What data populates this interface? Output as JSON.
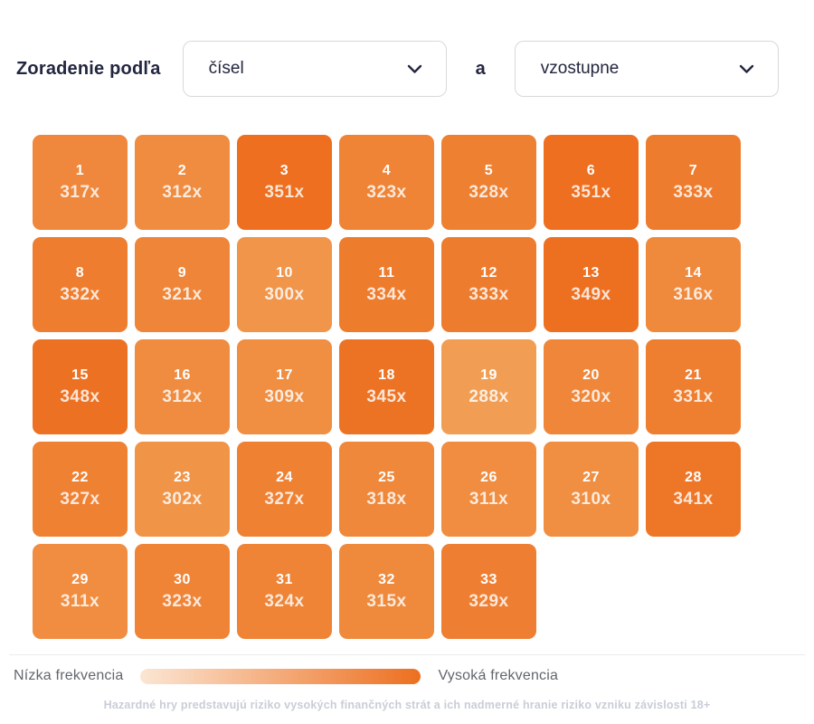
{
  "header": {
    "label": "Zoradenie podľa",
    "conjunction": "a",
    "sort_by_dropdown": {
      "selected": "čísel",
      "icon": "chevron-down-icon"
    },
    "direction_dropdown": {
      "selected": "vzostupne",
      "icon": "chevron-down-icon"
    }
  },
  "chart_data": {
    "type": "heatmap",
    "categories": [
      1,
      2,
      3,
      4,
      5,
      6,
      7,
      8,
      9,
      10,
      11,
      12,
      13,
      14,
      15,
      16,
      17,
      18,
      19,
      20,
      21,
      22,
      23,
      24,
      25,
      26,
      27,
      28,
      29,
      30,
      31,
      32,
      33
    ],
    "values": [
      317,
      312,
      351,
      323,
      328,
      351,
      333,
      332,
      321,
      300,
      334,
      333,
      349,
      316,
      348,
      312,
      309,
      345,
      288,
      320,
      331,
      327,
      302,
      327,
      318,
      311,
      310,
      341,
      311,
      323,
      324,
      315,
      329
    ],
    "unit_suffix": "x",
    "min_value": 288,
    "max_value": 351,
    "color_low": "#f19e54",
    "color_high": "#ed6f1f",
    "columns": 7,
    "legend_position": "bottom"
  },
  "legend": {
    "low_label": "Nízka frekvencia",
    "high_label": "Vysoká frekvencia",
    "gradient_from": "#fbe6d4",
    "gradient_to": "#ed6f1f"
  },
  "footer": {
    "disclaimer": "Hazardné hry predstavujú riziko vysokých finančných strát a ich nadmerné hranie riziko vzniku závislosti 18+"
  },
  "colors": {
    "text_dark": "#23263f",
    "border_gray": "#d9d9d9",
    "legend_text": "#63666e",
    "footer_text": "#c9cdd6"
  }
}
